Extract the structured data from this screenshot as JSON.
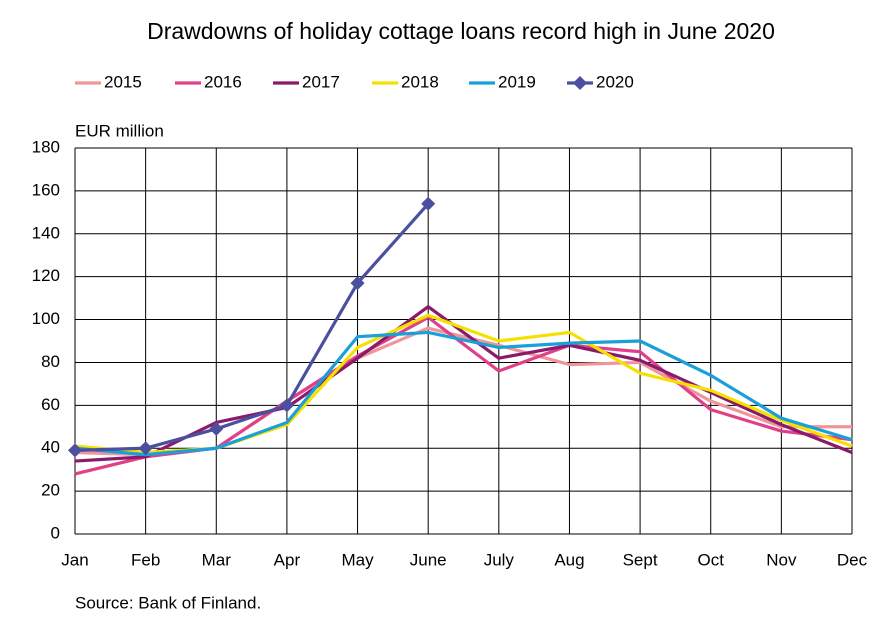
{
  "chart_data": {
    "type": "line",
    "title": "Drawdowns of holiday cottage loans record high in June 2020",
    "y_axis_label": "EUR million",
    "source": "Source: Bank of Finland.",
    "categories": [
      "Jan",
      "Feb",
      "Mar",
      "Apr",
      "May",
      "June",
      "July",
      "Aug",
      "Sept",
      "Oct",
      "Nov",
      "Dec"
    ],
    "series": [
      {
        "name": "2015",
        "color": "#f0959a",
        "values": [
          38,
          37,
          40,
          62,
          82,
          96,
          88,
          79,
          80,
          62,
          50,
          50
        ]
      },
      {
        "name": "2016",
        "color": "#e0408a",
        "values": [
          28,
          36,
          40,
          62,
          83,
          101,
          76,
          88,
          85,
          58,
          48,
          44
        ]
      },
      {
        "name": "2017",
        "color": "#8b1a6b",
        "values": [
          34,
          36,
          52,
          59,
          82,
          106,
          82,
          88,
          81,
          66,
          51,
          38
        ]
      },
      {
        "name": "2018",
        "color": "#f5e000",
        "values": [
          41,
          38,
          40,
          51,
          87,
          102,
          90,
          94,
          75,
          67,
          53,
          41
        ]
      },
      {
        "name": "2019",
        "color": "#1aa0d8",
        "values": [
          40,
          37,
          40,
          52,
          92,
          94,
          87,
          89,
          90,
          74,
          54,
          44
        ]
      },
      {
        "name": "2020",
        "color": "#4b4fa0",
        "marker": "diamond",
        "values": [
          39,
          40,
          49,
          60,
          117,
          154,
          null,
          null,
          null,
          null,
          null,
          null
        ]
      }
    ],
    "ylim": [
      0,
      180
    ],
    "yticks": [
      0,
      20,
      40,
      60,
      80,
      100,
      120,
      140,
      160,
      180
    ],
    "grid": true
  }
}
